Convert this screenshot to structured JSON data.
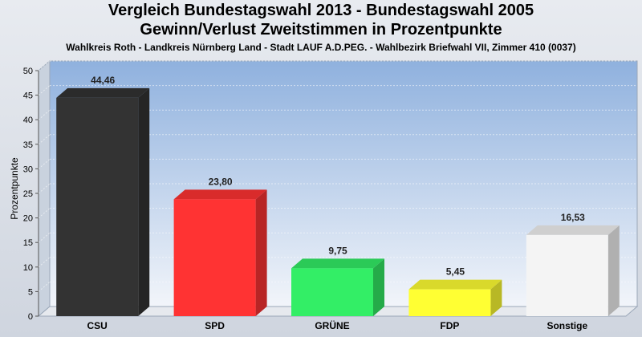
{
  "header": {
    "title_line1": "Vergleich Bundestagswahl 2013  - Bundestagswahl 2005",
    "title_line2": "Gewinn/Verlust Zweitstimmen in Prozentpunkte",
    "subtitle": "Wahlkreis Roth - Landkreis Nürnberg Land - Stadt LAUF A.D.PEG. - Wahlbezirk Briefwahl VII, Zimmer 410 (0037)"
  },
  "chart_data": {
    "type": "bar",
    "title": "Vergleich Bundestagswahl 2013  - Bundestagswahl 2005",
    "subtitle": "Gewinn/Verlust Zweitstimmen in Prozentpunkte",
    "ylabel": "Prozentpunkte",
    "xlabel": "",
    "ylim": [
      0,
      50
    ],
    "yticks": [
      0,
      5,
      10,
      15,
      20,
      25,
      30,
      35,
      40,
      45,
      50
    ],
    "grid": true,
    "categories": [
      "CSU",
      "SPD",
      "GRÜNE",
      "FDP",
      "Sonstige"
    ],
    "values": [
      44.46,
      23.8,
      9.75,
      5.45,
      16.53
    ],
    "value_labels": [
      "44,46",
      "23,80",
      "9,75",
      "5,45",
      "16,53"
    ],
    "colors": [
      "#333333",
      "#ff3333",
      "#33ee66",
      "#ffff33",
      "#f4f4f4"
    ]
  }
}
